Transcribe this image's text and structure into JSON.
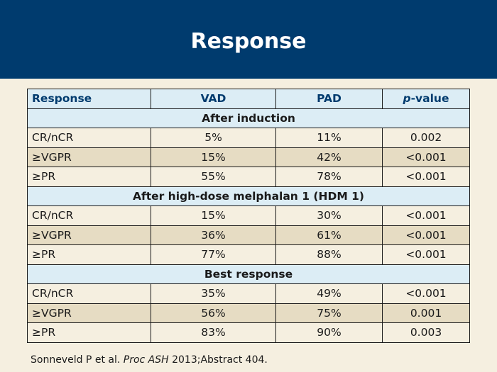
{
  "header": {
    "title": "Response"
  },
  "table": {
    "columns": [
      "Response",
      "VAD",
      "PAD",
      "-value"
    ],
    "p_italic": "p",
    "sections": [
      {
        "title": "After induction",
        "rows": [
          {
            "label": "CR/nCR",
            "vad": "5%",
            "pad": "11%",
            "p": "0.002"
          },
          {
            "label": "≥VGPR",
            "vad": "15%",
            "pad": "42%",
            "p": "<0.001"
          },
          {
            "label": "≥PR",
            "vad": "55%",
            "pad": "78%",
            "p": "<0.001"
          }
        ]
      },
      {
        "title": "After high-dose melphalan 1 (HDM 1)",
        "rows": [
          {
            "label": "CR/nCR",
            "vad": "15%",
            "pad": "30%",
            "p": "<0.001"
          },
          {
            "label": "≥VGPR",
            "vad": "36%",
            "pad": "61%",
            "p": "<0.001"
          },
          {
            "label": "≥PR",
            "vad": "77%",
            "pad": "88%",
            "p": "<0.001"
          }
        ]
      },
      {
        "title": "Best response",
        "rows": [
          {
            "label": "CR/nCR",
            "vad": "35%",
            "pad": "49%",
            "p": "<0.001"
          },
          {
            "label": "≥VGPR",
            "vad": "56%",
            "pad": "75%",
            "p": "0.001"
          },
          {
            "label": "≥PR",
            "vad": "83%",
            "pad": "90%",
            "p": "0.003"
          }
        ]
      }
    ]
  },
  "citation": {
    "prefix": "Sonneveld P et al. ",
    "journal": "Proc ASH",
    "suffix": " 2013;Abstract 404."
  },
  "colors": {
    "header_bg": "#003b6e",
    "header_row_bg": "#dcedf5",
    "stripe_bg": "#e6dcc3",
    "page_bg": "#f5efe0"
  }
}
